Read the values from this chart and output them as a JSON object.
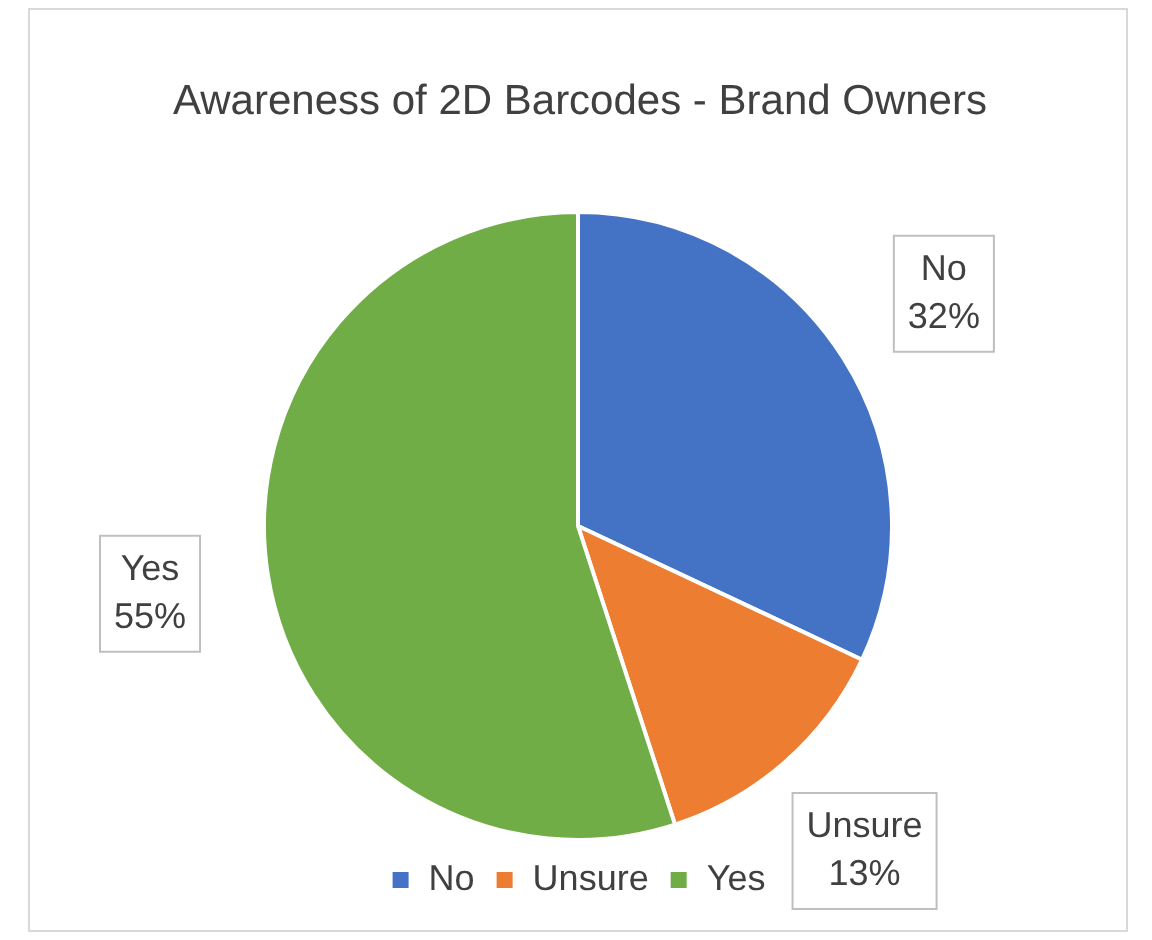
{
  "chart_data": {
    "type": "pie",
    "title": "Awareness of 2D Barcodes - Brand Owners",
    "categories": [
      "No",
      "Unsure",
      "Yes"
    ],
    "values": [
      32,
      13,
      55
    ],
    "colors": [
      "#4472c4",
      "#ed7d31",
      "#70ad47"
    ],
    "value_labels": [
      "32%",
      "13%",
      "55%"
    ],
    "legend": "bottom"
  }
}
